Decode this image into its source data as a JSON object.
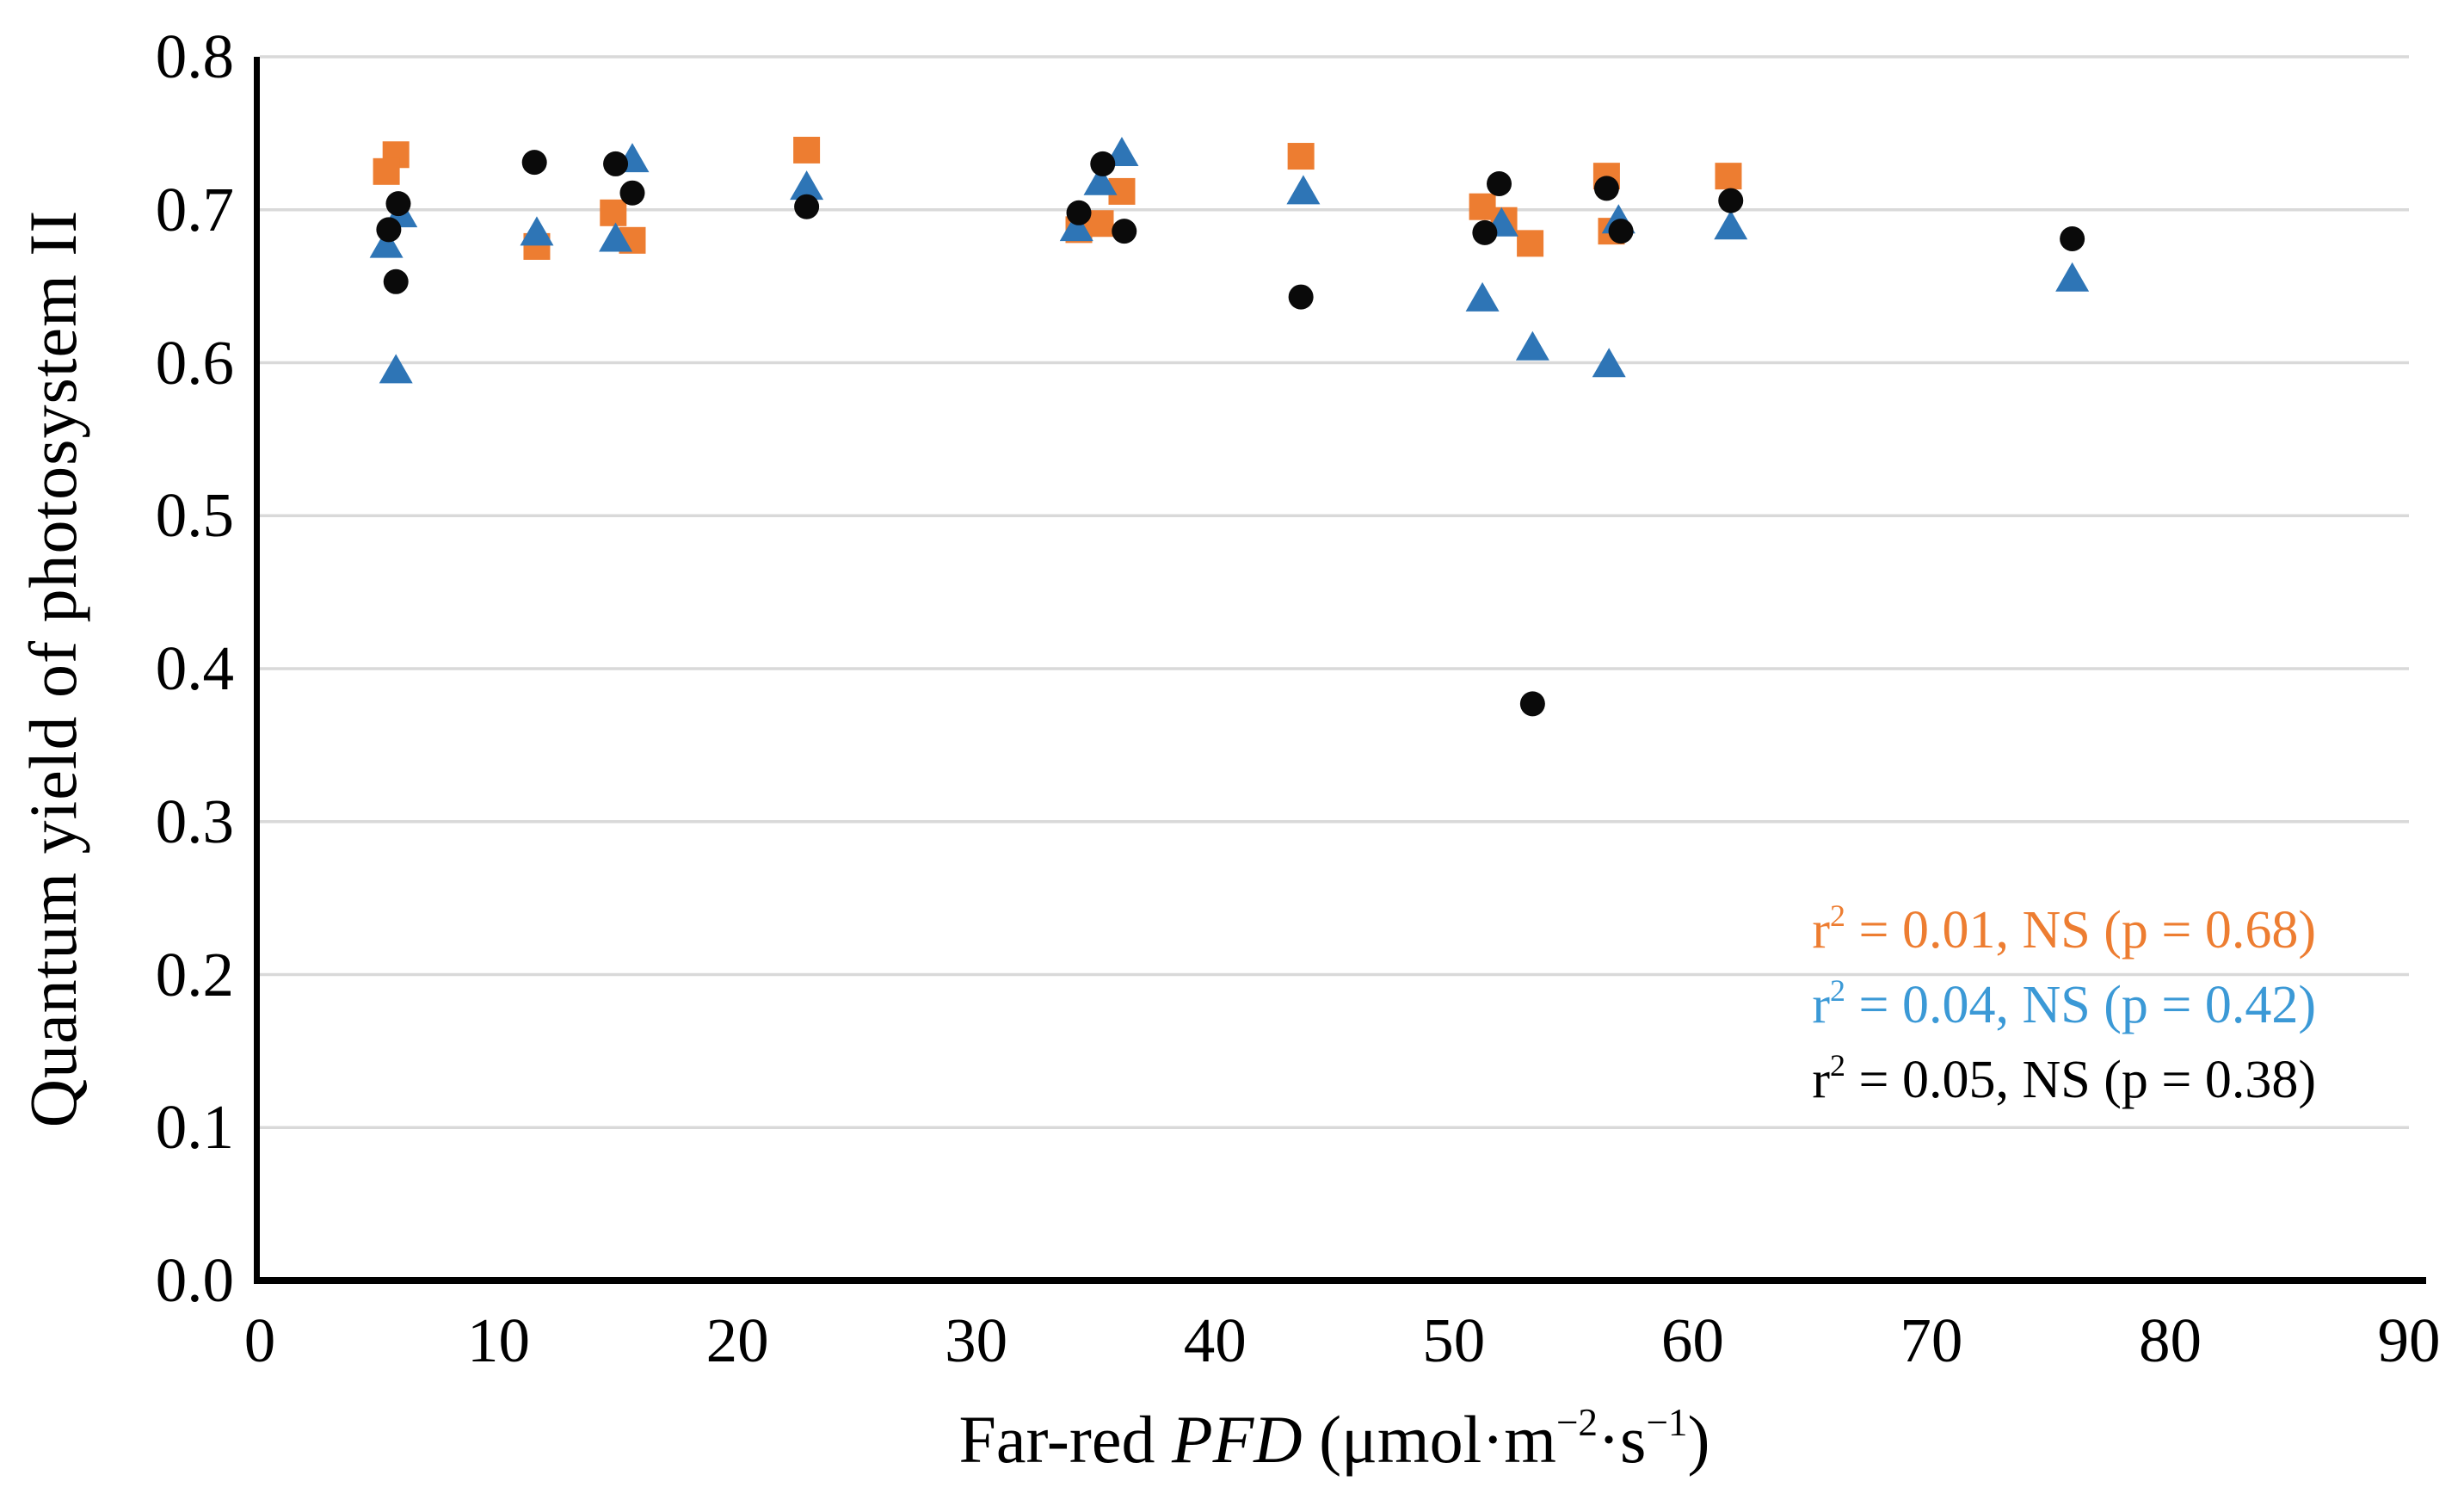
{
  "chart_data": {
    "type": "scatter",
    "title": "",
    "ylabel": "Quantum yield of photosystem II",
    "xlabel_parts": [
      "Far-red ",
      "PFD",
      " (μmol·m",
      "−2",
      "·s",
      "−1",
      ")"
    ],
    "xlabel_plain": "Far-red PFD (μmol·m⁻²·s⁻¹)",
    "xlim": [
      0,
      90
    ],
    "ylim": [
      0.0,
      0.8
    ],
    "x_ticks": [
      "0",
      "10",
      "20",
      "30",
      "40",
      "50",
      "60",
      "70",
      "80",
      "90"
    ],
    "y_ticks": [
      "0.0",
      "0.1",
      "0.2",
      "0.3",
      "0.4",
      "0.5",
      "0.6",
      "0.7",
      "0.8"
    ],
    "grid": "horizontal-only",
    "gridline_color": "#D9D9D9",
    "axis_color": "#000000",
    "legend_position": "none",
    "series": [
      {
        "name": "orange-squares",
        "marker": "square",
        "color": "#ED7D31",
        "points": [
          [
            5.7,
            0.736
          ],
          [
            5.3,
            0.725
          ],
          [
            11.6,
            0.676
          ],
          [
            14.8,
            0.698
          ],
          [
            15.6,
            0.68
          ],
          [
            22.9,
            0.739
          ],
          [
            34.3,
            0.687
          ],
          [
            35.2,
            0.691
          ],
          [
            36.1,
            0.712
          ],
          [
            43.6,
            0.735
          ],
          [
            51.2,
            0.702
          ],
          [
            52.1,
            0.693
          ],
          [
            53.2,
            0.678
          ],
          [
            56.4,
            0.722
          ],
          [
            56.6,
            0.686
          ],
          [
            61.5,
            0.722
          ]
        ]
      },
      {
        "name": "blue-triangles",
        "marker": "triangle",
        "color": "#2E75B6",
        "points": [
          [
            5.9,
            0.697
          ],
          [
            5.3,
            0.677
          ],
          [
            5.7,
            0.595
          ],
          [
            11.6,
            0.685
          ],
          [
            14.9,
            0.681
          ],
          [
            15.6,
            0.733
          ],
          [
            22.9,
            0.715
          ],
          [
            34.2,
            0.688
          ],
          [
            35.2,
            0.718
          ],
          [
            36.1,
            0.737
          ],
          [
            43.7,
            0.712
          ],
          [
            51.2,
            0.642
          ],
          [
            52.0,
            0.691
          ],
          [
            53.3,
            0.61
          ],
          [
            56.5,
            0.599
          ],
          [
            56.9,
            0.693
          ],
          [
            61.6,
            0.689
          ],
          [
            75.9,
            0.655
          ]
        ]
      },
      {
        "name": "black-circles",
        "marker": "circle",
        "color": "#0A0A0A",
        "points": [
          [
            5.8,
            0.704
          ],
          [
            5.4,
            0.687
          ],
          [
            5.7,
            0.653
          ],
          [
            11.5,
            0.731
          ],
          [
            14.9,
            0.73
          ],
          [
            15.6,
            0.711
          ],
          [
            22.9,
            0.702
          ],
          [
            34.3,
            0.698
          ],
          [
            35.3,
            0.73
          ],
          [
            36.2,
            0.686
          ],
          [
            43.6,
            0.643
          ],
          [
            51.3,
            0.685
          ],
          [
            51.9,
            0.717
          ],
          [
            53.3,
            0.377
          ],
          [
            56.4,
            0.714
          ],
          [
            57.0,
            0.686
          ],
          [
            61.6,
            0.706
          ],
          [
            75.9,
            0.681
          ]
        ]
      }
    ],
    "annotations": [
      {
        "r": "r",
        "sup": "2",
        "text": " = 0.01, NS (p = 0.68)",
        "color": "#ED7D31",
        "series": "orange-squares"
      },
      {
        "r": "r",
        "sup": "2",
        "text": " = 0.04, NS (p = 0.42)",
        "color": "#3B99D6",
        "series": "blue-triangles"
      },
      {
        "r": "r",
        "sup": "2",
        "text": " = 0.05, NS (p = 0.38)",
        "color": "#000000",
        "series": "black-circles"
      }
    ]
  }
}
